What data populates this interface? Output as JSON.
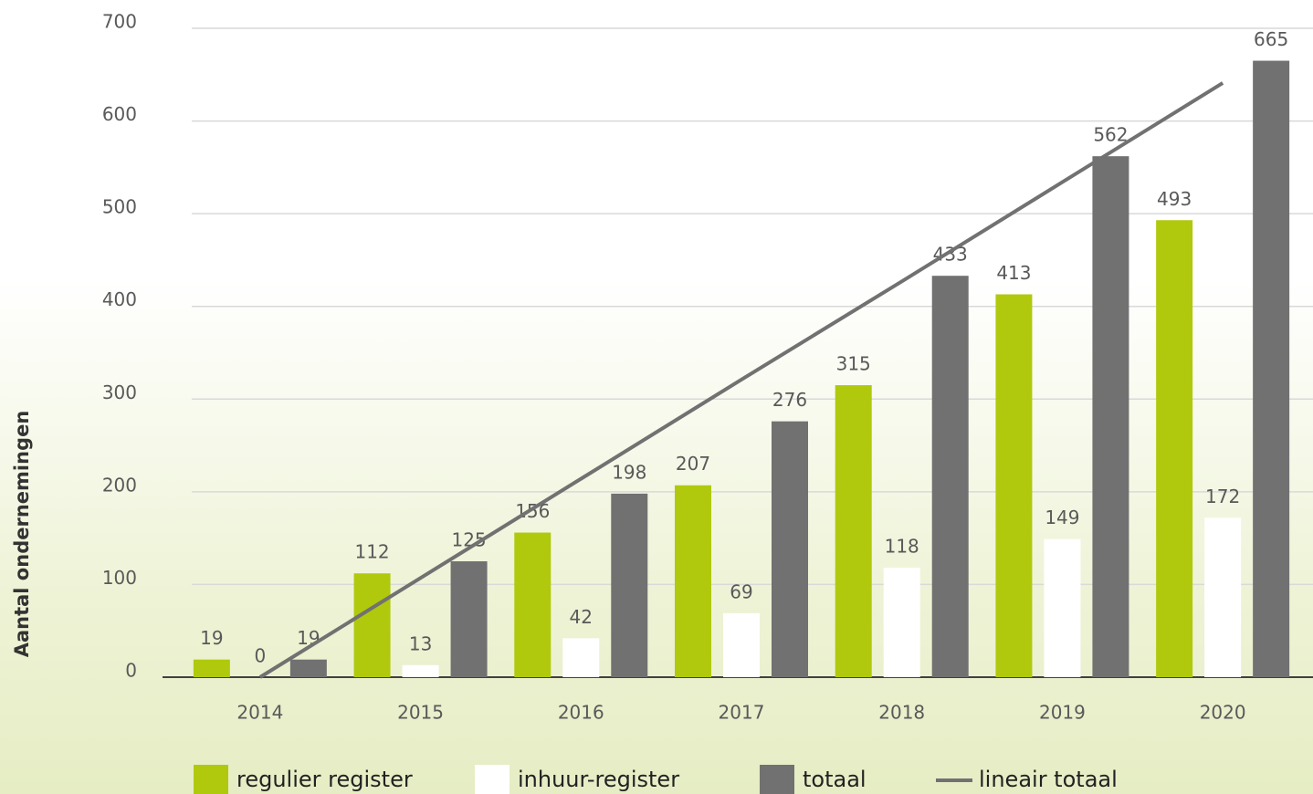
{
  "chart_data": {
    "type": "bar",
    "y_label": "Aantal ondernemingen",
    "categories": [
      "2014",
      "2015",
      "2016",
      "2017",
      "2018",
      "2019",
      "2020"
    ],
    "series": [
      {
        "name": "regulier register",
        "color": "#b0c90d",
        "values": [
          19,
          112,
          156,
          207,
          315,
          413,
          493
        ]
      },
      {
        "name": "inhuur-register",
        "color": "#ffffff",
        "values": [
          0,
          13,
          42,
          69,
          118,
          149,
          172
        ]
      },
      {
        "name": "totaal",
        "color": "#717171",
        "values": [
          19,
          125,
          198,
          276,
          433,
          562,
          665
        ]
      },
      {
        "name": "lineair totaal",
        "color": "#717171",
        "type": "line",
        "values": [
          0,
          107,
          214,
          321,
          427,
          534,
          641
        ]
      }
    ],
    "ylim": [
      0,
      700
    ],
    "yticks": [
      0,
      100,
      200,
      300,
      400,
      500,
      600,
      700
    ],
    "grid": true,
    "legend": "bottom"
  }
}
